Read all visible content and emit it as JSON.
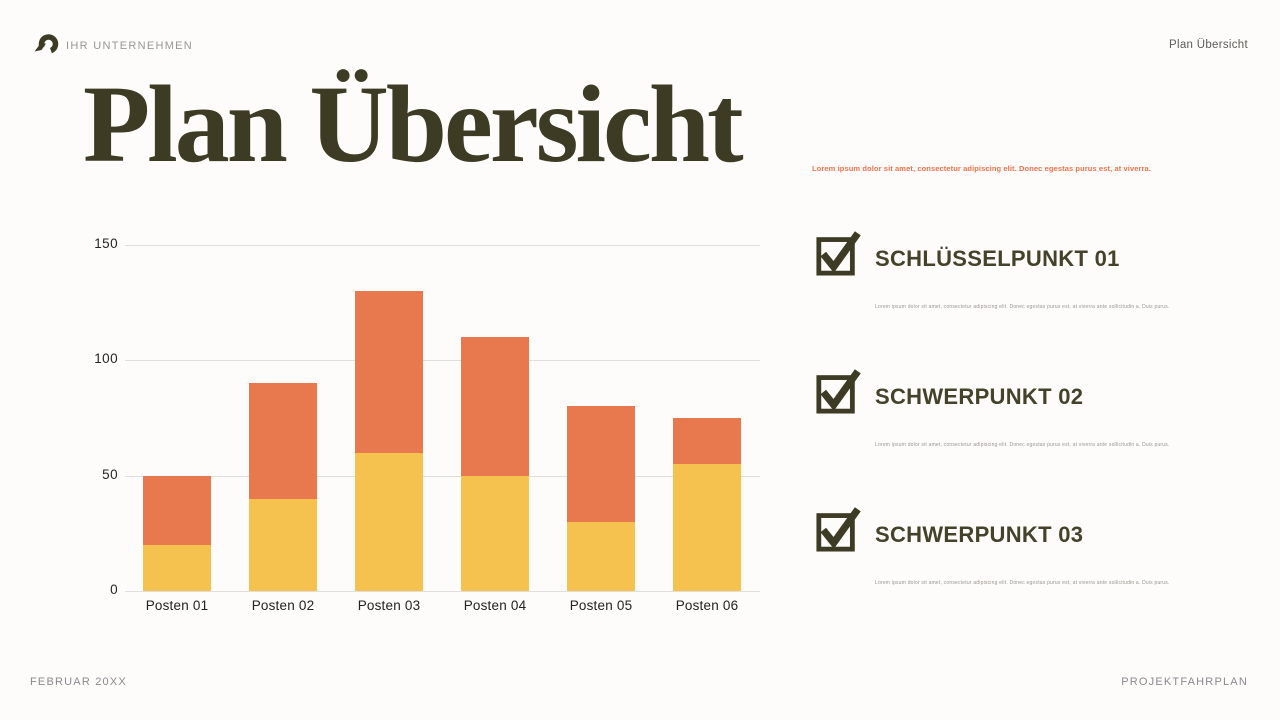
{
  "header": {
    "company_name": "IHR UNTERNEHMEN",
    "page_label": "Plan Übersicht"
  },
  "title": "Plan Übersicht",
  "intro_text": "Lorem ipsum dolor sit amet, consectetur adipiscing elit. Donec egestas purus est, at viverra.",
  "checklist": [
    {
      "icon": "checkbox-checked-icon",
      "heading": "SCHLÜSSELPUNKT 01",
      "body": "Lorem ipsum dolor sit amet, consectetur adipiscing elit. Donec egestas purus est, at viverra ante sollicitudin a. Duis purus."
    },
    {
      "icon": "checkbox-checked-icon",
      "heading": "SCHWERPUNKT 02",
      "body": "Lorem ipsum dolor sit amet, consectetur adipiscing elit. Donec egestas purus est, at viverra ante sollicitudin a. Duis purus."
    },
    {
      "icon": "checkbox-checked-icon",
      "heading": "SCHWERPUNKT 03",
      "body": "Lorem ipsum dolor sit amet, consectetur adipiscing elit. Donec egestas purus est, at viverra ante sollicitudin a. Duis purus."
    }
  ],
  "footer": {
    "left_label": "FEBRUAR 20XX",
    "right_label": "PROJEKTFAHRPLAN"
  },
  "colors": {
    "olive": "#3E3B25",
    "orange": "#E8784E",
    "yellow": "#F5C24F",
    "muted_gray": "#8B898E",
    "grid_gray": "#DFDEDA",
    "intro_orange": "#F3714B",
    "background": "#FDFCFA"
  },
  "chart_data": {
    "type": "bar",
    "stacked": true,
    "title": "",
    "xlabel": "",
    "ylabel": "",
    "categories": [
      "Posten 01",
      "Posten 02",
      "Posten 03",
      "Posten 04",
      "Posten 05",
      "Posten 06"
    ],
    "series": [
      {
        "name": "bottom",
        "color": "#F5C24F",
        "values": [
          20,
          40,
          60,
          50,
          30,
          55
        ]
      },
      {
        "name": "top",
        "color": "#E8784E",
        "values": [
          30,
          50,
          70,
          60,
          50,
          20
        ]
      }
    ],
    "totals": [
      50,
      90,
      130,
      110,
      80,
      75
    ],
    "ylim": [
      0,
      150
    ],
    "yticks": [
      0,
      50,
      100,
      150
    ],
    "grid": true,
    "legend": false
  }
}
